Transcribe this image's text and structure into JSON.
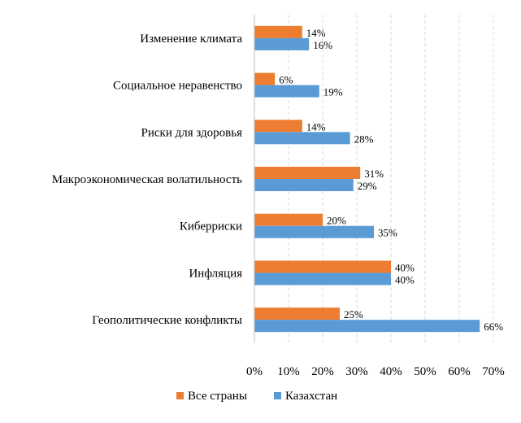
{
  "chart_data": {
    "type": "bar",
    "orientation": "horizontal",
    "categories": [
      "Изменение климата",
      "Социальное  неравенство",
      "Риски для здоровья",
      "Макроэкономическая волатильность",
      "Киберриски",
      "Инфляция",
      "Геополитические конфликты"
    ],
    "series": [
      {
        "name": "Все страны",
        "color": "#ed7d31",
        "values": [
          14,
          6,
          14,
          31,
          20,
          40,
          25
        ],
        "labels": [
          "14%",
          "6%",
          "14%",
          "31%",
          "20%",
          "40%",
          "25%"
        ]
      },
      {
        "name": "Казахстан",
        "color": "#5b9bd5",
        "values": [
          16,
          19,
          28,
          29,
          35,
          40,
          66
        ],
        "labels": [
          "16%",
          "19%",
          "28%",
          "29%",
          "35%",
          "40%",
          "66%"
        ]
      }
    ],
    "xlim": [
      0,
      70
    ],
    "xticks": [
      0,
      10,
      20,
      30,
      40,
      50,
      60,
      70
    ],
    "xtick_labels": [
      "0%",
      "10%",
      "20%",
      "30%",
      "40%",
      "50%",
      "60%",
      "70%"
    ],
    "grid": true,
    "legend_position": "bottom"
  }
}
